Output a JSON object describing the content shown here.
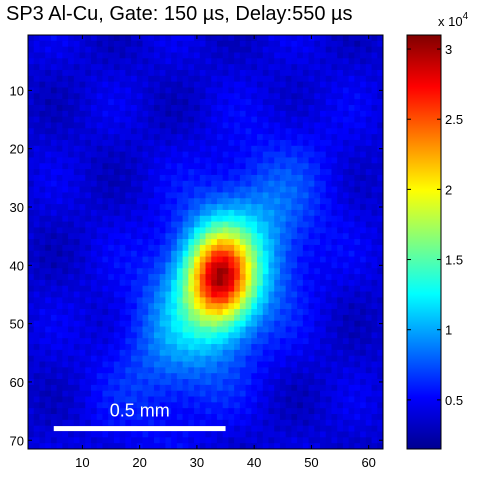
{
  "chart_data": {
    "type": "heatmap",
    "title": "SP3 Al-Cu, Gate: 150 µs, Delay:550 µs",
    "xlabel": "",
    "ylabel": "",
    "xlim": [
      0.5,
      62.5
    ],
    "ylim": [
      0.5,
      71.5
    ],
    "y_axis_direction": "top-to-bottom",
    "x_ticks": [
      10,
      20,
      30,
      40,
      50,
      60
    ],
    "y_ticks": [
      10,
      20,
      30,
      40,
      50,
      60,
      70
    ],
    "colormap": "jet",
    "colorbar": {
      "range": [
        1500,
        31000
      ],
      "ticks": [
        {
          "value": 5000,
          "label": "0.5"
        },
        {
          "value": 10000,
          "label": "1"
        },
        {
          "value": 15000,
          "label": "1.5"
        },
        {
          "value": 20000,
          "label": "2"
        },
        {
          "value": 25000,
          "label": "2.5"
        },
        {
          "value": 30000,
          "label": "3"
        }
      ],
      "multiplier_base": "x 10",
      "multiplier_exp": "4"
    },
    "hotspot": {
      "peak_x": 34,
      "peak_y": 43,
      "peak_value": 31000,
      "background_value": 4000
    },
    "scale_bar": {
      "label": "0.5 mm",
      "x_start": 5,
      "x_end": 35,
      "y": 68
    }
  }
}
